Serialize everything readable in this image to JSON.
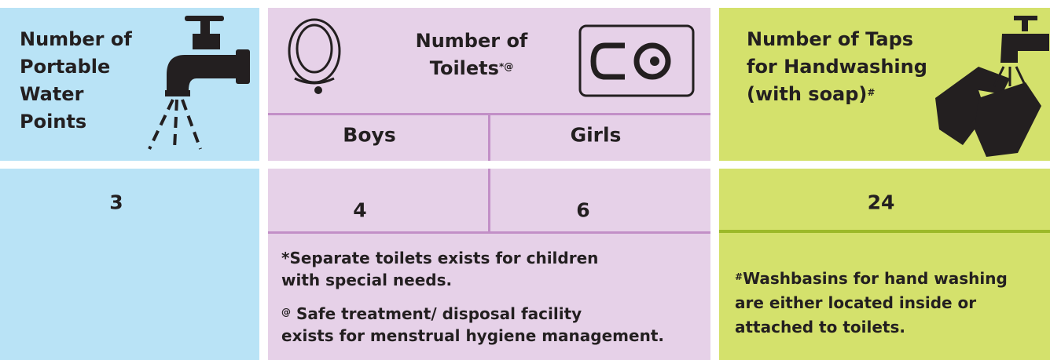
{
  "water_points": {
    "label_lines": [
      "Number of",
      "Portable",
      "Water",
      "Points"
    ],
    "value": 3
  },
  "toilets": {
    "label_lines": [
      "Number of",
      "Toilets"
    ],
    "label_sup": "*@",
    "columns": [
      {
        "label": "Boys",
        "value": 4
      },
      {
        "label": "Girls",
        "value": 6
      }
    ],
    "notes": [
      {
        "lines": [
          "*Separate toilets exists for children",
          "with special needs."
        ]
      },
      {
        "sup": "@",
        "lines": [
          "Safe treatment/ disposal facility",
          "exists for menstrual hygiene management."
        ]
      }
    ]
  },
  "handwashing": {
    "label_lines": [
      "Number of Taps",
      "for Handwashing",
      "(with soap)"
    ],
    "label_sup": "#",
    "value": 24,
    "note": {
      "sup": "#",
      "lines": [
        "Washbasins for hand washing",
        "are either located inside or",
        "attached to toilets."
      ]
    }
  }
}
